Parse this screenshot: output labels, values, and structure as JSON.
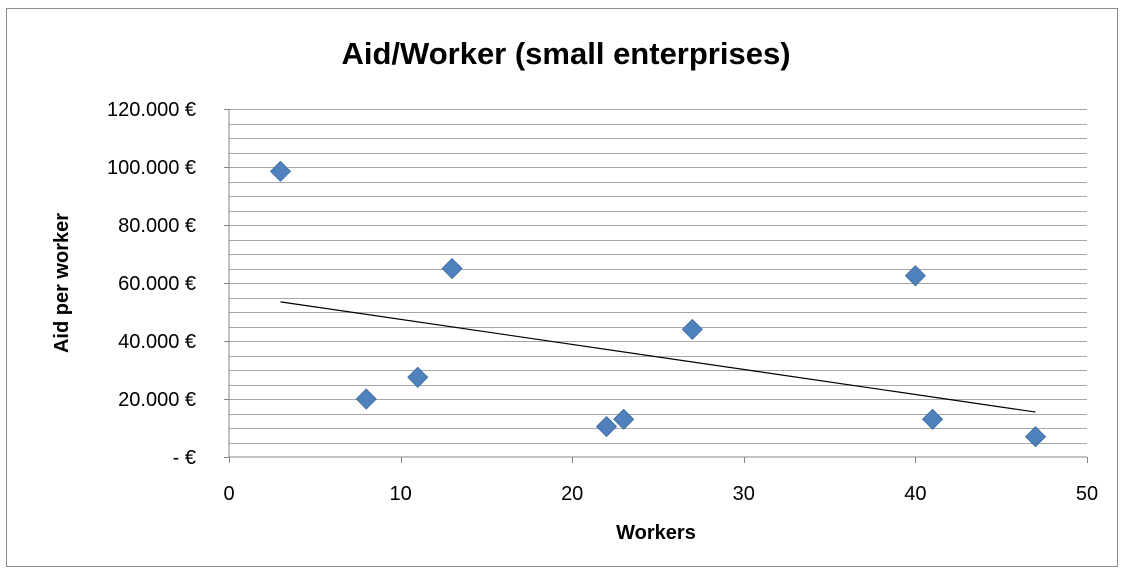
{
  "chart_data": {
    "type": "scatter",
    "title": "Aid/Worker (small enterprises)",
    "xlabel": "Workers",
    "ylabel": "Aid per worker",
    "xlim": [
      0,
      50
    ],
    "ylim": [
      0,
      120000
    ],
    "x_ticks": [
      0,
      10,
      20,
      30,
      40,
      50
    ],
    "x_tick_labels": [
      "0",
      "10",
      "20",
      "30",
      "40",
      "50"
    ],
    "y_ticks": [
      0,
      20000,
      40000,
      60000,
      80000,
      100000,
      120000
    ],
    "y_tick_labels": [
      "-  €",
      "20.000 €",
      "40.000 €",
      "60.000 €",
      "80.000 €",
      "100.000 €",
      "120.000 €"
    ],
    "grid": true,
    "marker": "diamond",
    "marker_color": "#4f81bd",
    "trendline": {
      "type": "linear",
      "x_range": [
        3,
        47
      ],
      "y_start": 53500,
      "y_end": 15500,
      "color": "#000000"
    },
    "points": [
      {
        "x": 3,
        "y": 98500
      },
      {
        "x": 8,
        "y": 20000
      },
      {
        "x": 11,
        "y": 27500
      },
      {
        "x": 13,
        "y": 65000
      },
      {
        "x": 22,
        "y": 10500
      },
      {
        "x": 23,
        "y": 13000
      },
      {
        "x": 27,
        "y": 44000
      },
      {
        "x": 40,
        "y": 62500
      },
      {
        "x": 41,
        "y": 13000
      },
      {
        "x": 47,
        "y": 7000
      }
    ]
  }
}
